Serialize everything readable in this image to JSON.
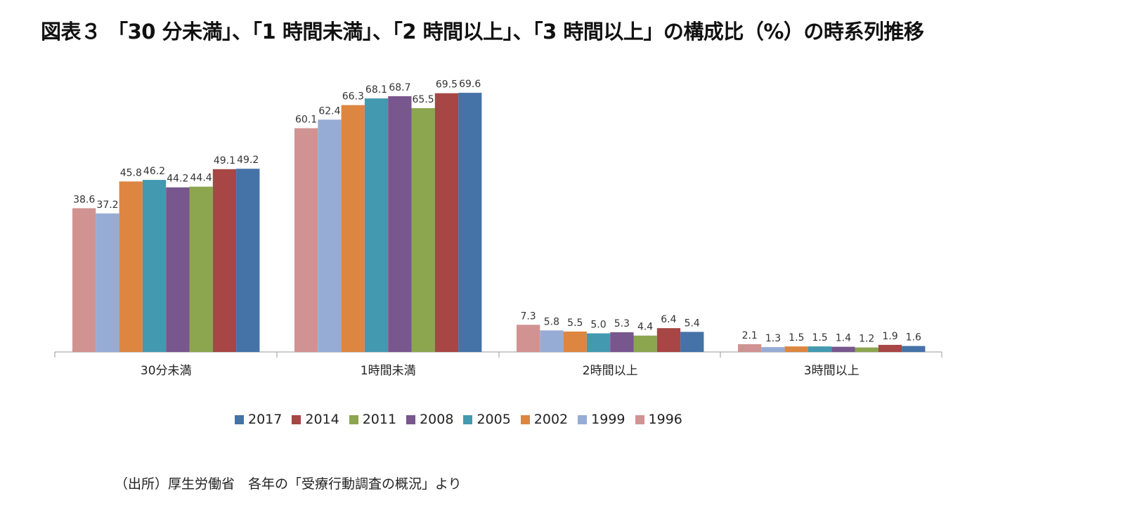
{
  "title": "図表３ 「30 分未満」、「1 時間未満」、「2 時間以上」、「3 時間以上」の構成比（%）の時系列推移",
  "source": "（出所）厚生労働省　各年の「受療行動調査の概況」より",
  "chart_data": {
    "type": "bar",
    "title": "図表３ 「30 分未満」、「1 時間未満」、「2 時間以上」、「3 時間以上」の構成比（%）の時系列推移",
    "categories": [
      "30分未満",
      "1時間未満",
      "2時間以上",
      "3時間以上"
    ],
    "series": [
      {
        "name": "1996",
        "color": "#d09392",
        "values": [
          38.6,
          60.1,
          7.3,
          2.1
        ],
        "labels": [
          "38.6",
          "60.1",
          "7.3",
          "2.1"
        ]
      },
      {
        "name": "1999",
        "color": "#97acd5",
        "values": [
          37.2,
          62.4,
          5.8,
          1.3
        ],
        "labels": [
          "37.2",
          "62.4",
          "5.8",
          "1.3"
        ]
      },
      {
        "name": "2002",
        "color": "#dc8641",
        "values": [
          45.8,
          66.3,
          5.5,
          1.5
        ],
        "labels": [
          "45.8",
          "66.3",
          "5.5",
          "1.5"
        ]
      },
      {
        "name": "2005",
        "color": "#4399b0",
        "values": [
          46.2,
          68.1,
          5.0,
          1.5
        ],
        "labels": [
          "46.2",
          "68.1",
          "5.0",
          "1.5"
        ]
      },
      {
        "name": "2008",
        "color": "#77578d",
        "values": [
          44.2,
          68.7,
          5.3,
          1.4
        ],
        "labels": [
          "44.2",
          "68.7",
          "5.3",
          "1.4"
        ]
      },
      {
        "name": "2011",
        "color": "#8ca54f",
        "values": [
          44.4,
          65.5,
          4.4,
          1.2
        ],
        "labels": [
          "44.4",
          "65.5",
          "4.4",
          "1.2"
        ]
      },
      {
        "name": "2014",
        "color": "#a74644",
        "values": [
          49.1,
          69.5,
          6.4,
          1.9
        ],
        "labels": [
          "49.1",
          "69.5",
          "6.4",
          "1.9"
        ]
      },
      {
        "name": "2017",
        "color": "#4572a7",
        "values": [
          49.2,
          69.6,
          5.4,
          1.6
        ],
        "labels": [
          "49.2",
          "69.6",
          "5.4",
          "1.6"
        ]
      }
    ],
    "legend_order": [
      "2017",
      "2014",
      "2011",
      "2008",
      "2005",
      "2002",
      "1999",
      "1996"
    ],
    "legend_position": "bottom",
    "ylim": [
      0,
      70
    ],
    "grid": false,
    "xlabel": "",
    "ylabel": ""
  }
}
